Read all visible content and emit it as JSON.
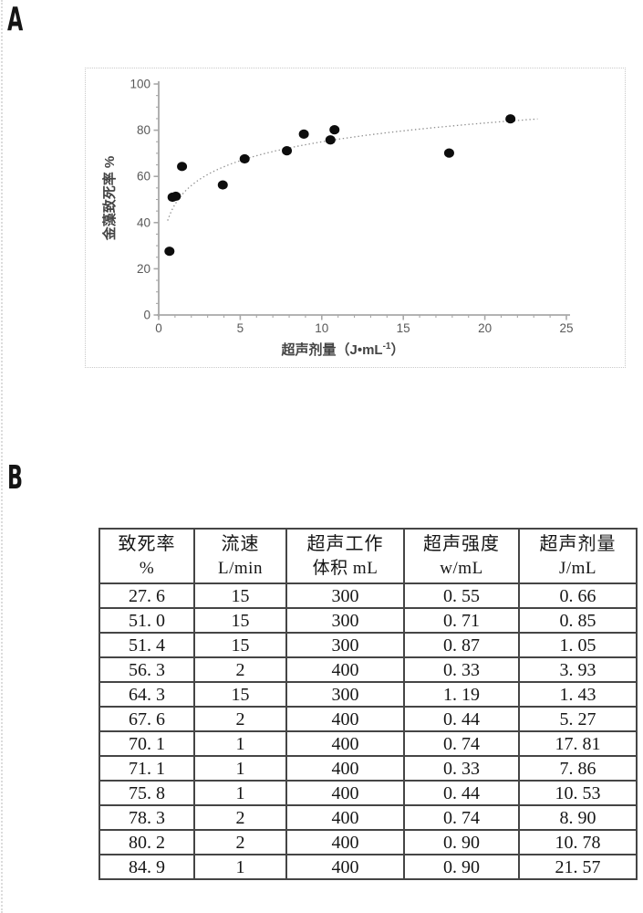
{
  "panels": {
    "a_label": "A",
    "b_label": "B"
  },
  "chart_data": {
    "type": "scatter",
    "title": "",
    "xlabel_prefix": "超声剂量（J•mL",
    "xlabel_sup": "-1",
    "xlabel_suffix": "）",
    "xlabel_full": "超声剂量（J•mL-1）",
    "ylabel": "金藻致死率 %",
    "xlim": [
      0,
      25
    ],
    "ylim": [
      0,
      100
    ],
    "x_ticks": [
      0,
      5,
      10,
      15,
      20,
      25
    ],
    "y_ticks": [
      0,
      20,
      40,
      60,
      80,
      100
    ],
    "x_minor_step": 1,
    "y_minor_step": 5,
    "grid": false,
    "legend": "none",
    "points": [
      {
        "x": 0.66,
        "y": 27.6
      },
      {
        "x": 0.85,
        "y": 51.0
      },
      {
        "x": 1.05,
        "y": 51.4
      },
      {
        "x": 3.93,
        "y": 56.3
      },
      {
        "x": 1.43,
        "y": 64.3
      },
      {
        "x": 5.27,
        "y": 67.6
      },
      {
        "x": 17.81,
        "y": 70.1
      },
      {
        "x": 7.86,
        "y": 71.1
      },
      {
        "x": 10.53,
        "y": 75.8
      },
      {
        "x": 8.9,
        "y": 78.3
      },
      {
        "x": 10.78,
        "y": 80.2
      },
      {
        "x": 21.57,
        "y": 84.9
      }
    ],
    "trendline": {
      "type": "logarithmic",
      "equation": "y = 11.75*ln(x) + 47.9",
      "a": 11.75,
      "b": 47.9,
      "x_start": 0.55,
      "x_end": 23.3,
      "style": "dotted"
    }
  },
  "table": {
    "columns": [
      {
        "line1": "致死率",
        "line2": "%"
      },
      {
        "line1": "流速",
        "line2": "L/min"
      },
      {
        "line1": "超声工作",
        "line2": "体积 mL"
      },
      {
        "line1": "超声强度",
        "line2": "w/mL"
      },
      {
        "line1": "超声剂量",
        "line2": "J/mL"
      }
    ],
    "rows": [
      [
        "27. 6",
        "15",
        "300",
        "0. 55",
        "0. 66"
      ],
      [
        "51. 0",
        "15",
        "300",
        "0. 71",
        "0. 85"
      ],
      [
        "51. 4",
        "15",
        "300",
        "0. 87",
        "1. 05"
      ],
      [
        "56. 3",
        "2",
        "400",
        "0. 33",
        "3. 93"
      ],
      [
        "64. 3",
        "15",
        "300",
        "1. 19",
        "1. 43"
      ],
      [
        "67. 6",
        "2",
        "400",
        "0. 44",
        "5. 27"
      ],
      [
        "70. 1",
        "1",
        "400",
        "0. 74",
        "17. 81"
      ],
      [
        "71. 1",
        "1",
        "400",
        "0. 33",
        "7. 86"
      ],
      [
        "75. 8",
        "1",
        "400",
        "0. 44",
        "10. 53"
      ],
      [
        "78. 3",
        "2",
        "400",
        "0. 74",
        "8. 90"
      ],
      [
        "80. 2",
        "2",
        "400",
        "0. 90",
        "10. 78"
      ],
      [
        "84. 9",
        "1",
        "400",
        "0. 90",
        "21. 57"
      ]
    ]
  },
  "colors": {
    "axis": "#a8a8a8",
    "tick_text": "#595959",
    "axis_title": "#444444",
    "point": "#0d0d0d",
    "trend": "#8f8f8f",
    "table_border": "#454545",
    "table_text": "#161616",
    "panel_border": "#c9c9c9",
    "panel_label": "#141414"
  }
}
